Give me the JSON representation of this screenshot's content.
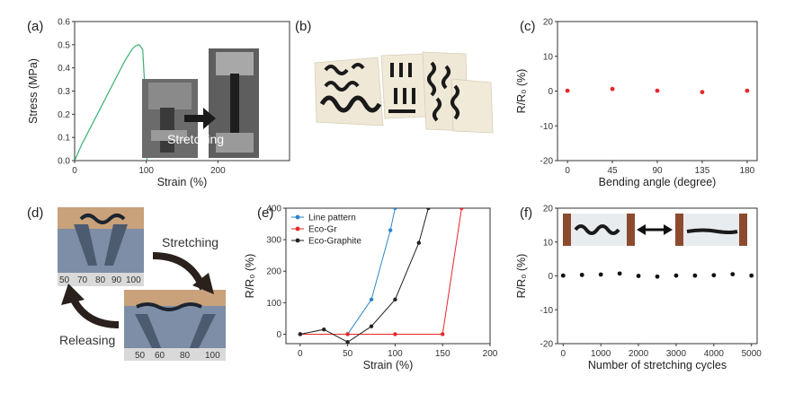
{
  "panels": {
    "a": "(a)",
    "b": "(b)",
    "c": "(c)",
    "d": "(d)",
    "e": "(e)",
    "f": "(f)"
  },
  "photo_text": {
    "a_inset": "Stretching",
    "d_stretching": "Stretching",
    "d_releasing": "Releasing",
    "d_ruler_top": [
      "50",
      "70",
      "80",
      "90",
      "100"
    ],
    "d_ruler_bottom": [
      "50",
      "60",
      "80",
      "100"
    ]
  },
  "colors": {
    "a_curve": "#3cb371",
    "c_points": "#e8262a",
    "line_pattern": "#2e86c8",
    "eco_gr": "#e8262a",
    "eco_graphite": "#222222",
    "f_points": "#111111"
  },
  "chart_data": [
    {
      "panel": "a",
      "type": "line",
      "xlabel": "Strain (%)",
      "ylabel": "Stress (MPa)",
      "xlim": [
        0,
        300
      ],
      "ylim": [
        0,
        0.6
      ],
      "xticks": [
        "0",
        "100",
        "200"
      ],
      "yticks": [
        "0.0",
        "0.1",
        "0.2",
        "0.3",
        "0.4",
        "0.5",
        "0.6"
      ],
      "series": [
        {
          "x": [
            0,
            10,
            20,
            30,
            40,
            50,
            60,
            70,
            80,
            85,
            90,
            95,
            100,
            101
          ],
          "y": [
            0,
            0.07,
            0.13,
            0.19,
            0.25,
            0.31,
            0.37,
            0.43,
            0.48,
            0.495,
            0.5,
            0.48,
            0.2,
            0.0
          ]
        }
      ]
    },
    {
      "panel": "c",
      "type": "scatter",
      "xlabel": "Bending angle (degree)",
      "ylabel": "R/R₀ (%)",
      "xlim": [
        -10,
        190
      ],
      "ylim": [
        -20,
        20
      ],
      "xticks": [
        "0",
        "45",
        "90",
        "135",
        "180"
      ],
      "yticks": [
        "-20",
        "-10",
        "0",
        "10",
        "20"
      ],
      "series": [
        {
          "x": [
            0,
            45,
            90,
            135,
            180
          ],
          "y": [
            0.1,
            0.6,
            0.1,
            -0.3,
            0.1
          ]
        }
      ]
    },
    {
      "panel": "e",
      "type": "line",
      "xlabel": "Strain (%)",
      "ylabel": "R/R₀ (%)",
      "xlim": [
        -15,
        200
      ],
      "ylim": [
        -30,
        400
      ],
      "xticks": [
        "0",
        "50",
        "100",
        "150",
        "200"
      ],
      "yticks": [
        "0",
        "100",
        "200",
        "300",
        "400"
      ],
      "legend": "top-left",
      "series": [
        {
          "name": "Line pattern",
          "x": [
            0,
            50,
            75,
            95,
            100
          ],
          "y": [
            0,
            0,
            110,
            330,
            400
          ]
        },
        {
          "name": "Eco-Gr",
          "x": [
            0,
            50,
            100,
            150,
            170
          ],
          "y": [
            0,
            0,
            0,
            0,
            400
          ]
        },
        {
          "name": "Eco-Graphite",
          "x": [
            0,
            25,
            50,
            75,
            100,
            125,
            135
          ],
          "y": [
            0,
            15,
            -25,
            25,
            110,
            290,
            400
          ]
        }
      ]
    },
    {
      "panel": "f",
      "type": "scatter",
      "xlabel": "Number of stretching cycles",
      "ylabel": "R/R₀ (%)",
      "xlim": [
        -150,
        5150
      ],
      "ylim": [
        -20,
        20
      ],
      "xticks": [
        "0",
        "1000",
        "2000",
        "3000",
        "4000",
        "5000"
      ],
      "yticks": [
        "-20",
        "-10",
        "0",
        "10",
        "20"
      ],
      "series": [
        {
          "x": [
            0,
            500,
            1000,
            1500,
            2000,
            2500,
            3000,
            3500,
            4000,
            4500,
            5000
          ],
          "y": [
            0.1,
            0.3,
            0.4,
            0.7,
            0.0,
            -0.2,
            0.1,
            0.1,
            0.2,
            0.5,
            0.1
          ]
        }
      ]
    }
  ]
}
